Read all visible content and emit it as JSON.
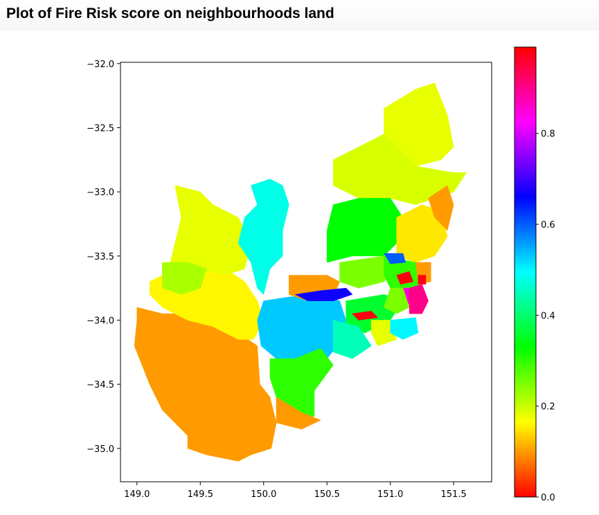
{
  "page": {
    "title": "Plot of Fire Risk score on neighbourhoods land"
  },
  "chart_data": {
    "type": "map",
    "title": "",
    "xlabel": "",
    "ylabel": "",
    "xlim": [
      148.87,
      151.8
    ],
    "ylim": [
      -35.26,
      -31.99
    ],
    "xticks": [
      149.0,
      149.5,
      150.0,
      150.5,
      151.0,
      151.5
    ],
    "xtick_labels": [
      "149.0",
      "149.5",
      "150.0",
      "150.5",
      "151.0",
      "151.5"
    ],
    "yticks": [
      -32.0,
      -32.5,
      -33.0,
      -33.5,
      -34.0,
      -34.5,
      -35.0
    ],
    "ytick_labels": [
      "−32.0",
      "−32.5",
      "−33.0",
      "−33.5",
      "−34.0",
      "−34.5",
      "−35.0"
    ],
    "grid": false,
    "colorbar": {
      "colormap": "hsv",
      "range": [
        0.0,
        0.99
      ],
      "ticks": [
        0.0,
        0.2,
        0.4,
        0.6,
        0.8
      ],
      "tick_labels": [
        "0.0",
        "0.2",
        "0.4",
        "0.6",
        "0.8"
      ],
      "position": "right"
    },
    "regions": [
      {
        "id": "southwest",
        "score": 0.1,
        "polygon": [
          [
            149.0,
            -33.9
          ],
          [
            149.2,
            -33.95
          ],
          [
            149.4,
            -33.95
          ],
          [
            149.6,
            -34.0
          ],
          [
            149.8,
            -34.1
          ],
          [
            149.95,
            -34.2
          ],
          [
            149.97,
            -34.5
          ],
          [
            150.05,
            -34.6
          ],
          [
            150.1,
            -34.8
          ],
          [
            150.06,
            -35.0
          ],
          [
            149.9,
            -35.05
          ],
          [
            149.8,
            -35.1
          ],
          [
            149.55,
            -35.05
          ],
          [
            149.4,
            -35.0
          ],
          [
            149.4,
            -34.9
          ],
          [
            149.2,
            -34.7
          ],
          [
            149.1,
            -34.5
          ],
          [
            148.98,
            -34.2
          ],
          [
            149.0,
            -34.0
          ]
        ]
      },
      {
        "id": "central-west",
        "score": 0.16,
        "polygon": [
          [
            149.1,
            -33.7
          ],
          [
            149.3,
            -33.6
          ],
          [
            149.45,
            -33.6
          ],
          [
            149.55,
            -33.5
          ],
          [
            149.7,
            -33.6
          ],
          [
            149.85,
            -33.7
          ],
          [
            149.95,
            -33.85
          ],
          [
            150.0,
            -34.0
          ],
          [
            149.92,
            -34.15
          ],
          [
            149.8,
            -34.15
          ],
          [
            149.6,
            -34.05
          ],
          [
            149.4,
            -34.0
          ],
          [
            149.2,
            -33.9
          ],
          [
            149.1,
            -33.8
          ]
        ]
      },
      {
        "id": "north-west",
        "score": 0.18,
        "polygon": [
          [
            149.3,
            -32.95
          ],
          [
            149.5,
            -33.0
          ],
          [
            149.6,
            -33.1
          ],
          [
            149.8,
            -33.2
          ],
          [
            149.9,
            -33.4
          ],
          [
            149.85,
            -33.6
          ],
          [
            149.7,
            -33.65
          ],
          [
            149.5,
            -33.6
          ],
          [
            149.4,
            -33.65
          ],
          [
            149.25,
            -33.6
          ],
          [
            149.3,
            -33.4
          ],
          [
            149.35,
            -33.2
          ]
        ]
      },
      {
        "id": "west-link",
        "score": 0.22,
        "polygon": [
          [
            149.2,
            -33.55
          ],
          [
            149.4,
            -33.55
          ],
          [
            149.55,
            -33.6
          ],
          [
            149.5,
            -33.75
          ],
          [
            149.35,
            -33.8
          ],
          [
            149.2,
            -33.75
          ]
        ]
      },
      {
        "id": "north-cyan",
        "score": 0.48,
        "polygon": [
          [
            149.9,
            -32.95
          ],
          [
            150.05,
            -32.9
          ],
          [
            150.15,
            -32.95
          ],
          [
            150.2,
            -33.1
          ],
          [
            150.15,
            -33.3
          ],
          [
            150.15,
            -33.5
          ],
          [
            150.05,
            -33.6
          ],
          [
            150.0,
            -33.8
          ],
          [
            149.95,
            -33.75
          ],
          [
            149.9,
            -33.55
          ],
          [
            149.8,
            -33.4
          ],
          [
            149.85,
            -33.2
          ],
          [
            149.95,
            -33.1
          ]
        ]
      },
      {
        "id": "blue-mountains",
        "score": 0.53,
        "polygon": [
          [
            150.0,
            -33.85
          ],
          [
            150.2,
            -33.82
          ],
          [
            150.45,
            -33.8
          ],
          [
            150.6,
            -33.85
          ],
          [
            150.65,
            -34.0
          ],
          [
            150.62,
            -34.15
          ],
          [
            150.5,
            -34.3
          ],
          [
            150.35,
            -34.35
          ],
          [
            150.1,
            -34.3
          ],
          [
            149.98,
            -34.2
          ],
          [
            149.95,
            -34.0
          ]
        ]
      },
      {
        "id": "south-green",
        "score": 0.3,
        "polygon": [
          [
            150.05,
            -34.3
          ],
          [
            150.25,
            -34.3
          ],
          [
            150.45,
            -34.22
          ],
          [
            150.55,
            -34.35
          ],
          [
            150.4,
            -34.55
          ],
          [
            150.4,
            -34.75
          ],
          [
            150.25,
            -34.75
          ],
          [
            150.1,
            -34.6
          ],
          [
            150.05,
            -34.45
          ]
        ]
      },
      {
        "id": "south-coast",
        "score": 0.1,
        "polygon": [
          [
            150.1,
            -34.6
          ],
          [
            150.3,
            -34.72
          ],
          [
            150.45,
            -34.78
          ],
          [
            150.3,
            -34.85
          ],
          [
            150.1,
            -34.8
          ]
        ]
      },
      {
        "id": "hunter-north",
        "score": 0.18,
        "polygon": [
          [
            150.95,
            -32.35
          ],
          [
            151.2,
            -32.2
          ],
          [
            151.35,
            -32.15
          ],
          [
            151.45,
            -32.4
          ],
          [
            151.5,
            -32.65
          ],
          [
            151.4,
            -32.75
          ],
          [
            151.2,
            -32.8
          ],
          [
            151.0,
            -32.75
          ],
          [
            150.95,
            -32.55
          ]
        ]
      },
      {
        "id": "hunter-mid",
        "score": 0.19,
        "polygon": [
          [
            150.55,
            -32.75
          ],
          [
            150.95,
            -32.55
          ],
          [
            151.2,
            -32.8
          ],
          [
            151.5,
            -32.85
          ],
          [
            151.6,
            -32.85
          ],
          [
            151.5,
            -33.0
          ],
          [
            151.35,
            -33.05
          ],
          [
            151.2,
            -33.1
          ],
          [
            151.0,
            -33.05
          ],
          [
            150.75,
            -33.05
          ],
          [
            150.55,
            -32.95
          ]
        ]
      },
      {
        "id": "hawkesbury-green",
        "score": 0.33,
        "polygon": [
          [
            150.55,
            -33.1
          ],
          [
            150.75,
            -33.05
          ],
          [
            151.0,
            -33.05
          ],
          [
            151.1,
            -33.2
          ],
          [
            151.05,
            -33.4
          ],
          [
            150.95,
            -33.5
          ],
          [
            150.7,
            -33.5
          ],
          [
            150.5,
            -33.55
          ],
          [
            150.5,
            -33.3
          ]
        ]
      },
      {
        "id": "central-coast",
        "score": 0.15,
        "polygon": [
          [
            151.05,
            -33.2
          ],
          [
            151.25,
            -33.1
          ],
          [
            151.4,
            -33.15
          ],
          [
            151.45,
            -33.35
          ],
          [
            151.35,
            -33.5
          ],
          [
            151.2,
            -33.55
          ],
          [
            151.05,
            -33.5
          ]
        ]
      },
      {
        "id": "lake-mac",
        "score": 0.1,
        "polygon": [
          [
            151.3,
            -33.05
          ],
          [
            151.45,
            -32.95
          ],
          [
            151.5,
            -33.1
          ],
          [
            151.45,
            -33.3
          ],
          [
            151.35,
            -33.2
          ]
        ]
      },
      {
        "id": "hills-orange",
        "score": 0.1,
        "polygon": [
          [
            150.2,
            -33.65
          ],
          [
            150.5,
            -33.65
          ],
          [
            150.6,
            -33.7
          ],
          [
            150.55,
            -33.82
          ],
          [
            150.35,
            -33.85
          ],
          [
            150.2,
            -33.8
          ]
        ]
      },
      {
        "id": "hills-blue",
        "score": 0.67,
        "polygon": [
          [
            150.25,
            -33.8
          ],
          [
            150.45,
            -33.77
          ],
          [
            150.65,
            -33.75
          ],
          [
            150.7,
            -33.8
          ],
          [
            150.55,
            -33.85
          ],
          [
            150.35,
            -33.85
          ]
        ]
      },
      {
        "id": "north-sydney",
        "score": 0.25,
        "polygon": [
          [
            150.6,
            -33.55
          ],
          [
            150.95,
            -33.5
          ],
          [
            151.05,
            -33.6
          ],
          [
            150.95,
            -33.7
          ],
          [
            150.75,
            -33.75
          ],
          [
            150.6,
            -33.7
          ]
        ]
      },
      {
        "id": "north-shore",
        "score": 0.3,
        "polygon": [
          [
            150.95,
            -33.5
          ],
          [
            151.2,
            -33.55
          ],
          [
            151.3,
            -33.65
          ],
          [
            151.2,
            -33.75
          ],
          [
            151.0,
            -33.75
          ],
          [
            150.95,
            -33.65
          ]
        ]
      },
      {
        "id": "parramatta",
        "score": 0.36,
        "polygon": [
          [
            150.65,
            -33.85
          ],
          [
            150.95,
            -33.8
          ],
          [
            151.1,
            -33.85
          ],
          [
            151.0,
            -34.0
          ],
          [
            150.8,
            -34.1
          ],
          [
            150.65,
            -34.05
          ]
        ]
      },
      {
        "id": "campbelltown",
        "score": 0.45,
        "polygon": [
          [
            150.55,
            -34.0
          ],
          [
            150.75,
            -34.05
          ],
          [
            150.85,
            -34.2
          ],
          [
            150.7,
            -34.3
          ],
          [
            150.55,
            -34.25
          ]
        ]
      },
      {
        "id": "liverpool-red",
        "score": 0.98,
        "polygon": [
          [
            150.7,
            -33.95
          ],
          [
            150.85,
            -33.93
          ],
          [
            150.9,
            -33.98
          ],
          [
            150.75,
            -34.0
          ]
        ]
      },
      {
        "id": "sutherland",
        "score": 0.18,
        "polygon": [
          [
            150.85,
            -34.0
          ],
          [
            151.0,
            -34.0
          ],
          [
            151.05,
            -34.15
          ],
          [
            150.9,
            -34.2
          ],
          [
            150.85,
            -34.1
          ]
        ]
      },
      {
        "id": "inner-purple",
        "score": 0.85,
        "polygon": [
          [
            151.05,
            -33.75
          ],
          [
            151.15,
            -33.75
          ],
          [
            151.2,
            -33.85
          ],
          [
            151.1,
            -33.9
          ],
          [
            151.02,
            -33.85
          ]
        ]
      },
      {
        "id": "inner-west",
        "score": 0.25,
        "polygon": [
          [
            151.0,
            -33.75
          ],
          [
            151.1,
            -33.75
          ],
          [
            151.15,
            -33.9
          ],
          [
            151.05,
            -33.95
          ],
          [
            150.95,
            -33.9
          ]
        ]
      },
      {
        "id": "eastern",
        "score": 0.9,
        "polygon": [
          [
            151.15,
            -33.75
          ],
          [
            151.25,
            -33.72
          ],
          [
            151.3,
            -33.85
          ],
          [
            151.25,
            -33.95
          ],
          [
            151.15,
            -33.95
          ]
        ]
      },
      {
        "id": "northern-beaches",
        "score": 0.1,
        "polygon": [
          [
            151.2,
            -33.55
          ],
          [
            151.32,
            -33.55
          ],
          [
            151.32,
            -33.7
          ],
          [
            151.22,
            -33.72
          ]
        ]
      },
      {
        "id": "botany",
        "score": 0.5,
        "polygon": [
          [
            151.0,
            -34.0
          ],
          [
            151.2,
            -33.98
          ],
          [
            151.22,
            -34.1
          ],
          [
            151.1,
            -34.15
          ],
          [
            151.0,
            -34.1
          ]
        ]
      },
      {
        "id": "red-patch",
        "score": 0.98,
        "polygon": [
          [
            151.05,
            -33.65
          ],
          [
            151.15,
            -33.62
          ],
          [
            151.18,
            -33.7
          ],
          [
            151.08,
            -33.72
          ]
        ]
      },
      {
        "id": "ku-ring-gai",
        "score": 0.98,
        "polygon": [
          [
            151.22,
            -33.65
          ],
          [
            151.28,
            -33.65
          ],
          [
            151.28,
            -33.72
          ],
          [
            151.22,
            -33.72
          ]
        ]
      },
      {
        "id": "north-east",
        "score": 0.6,
        "polygon": [
          [
            150.95,
            -33.48
          ],
          [
            151.1,
            -33.48
          ],
          [
            151.12,
            -33.55
          ],
          [
            151.0,
            -33.56
          ]
        ]
      }
    ]
  }
}
